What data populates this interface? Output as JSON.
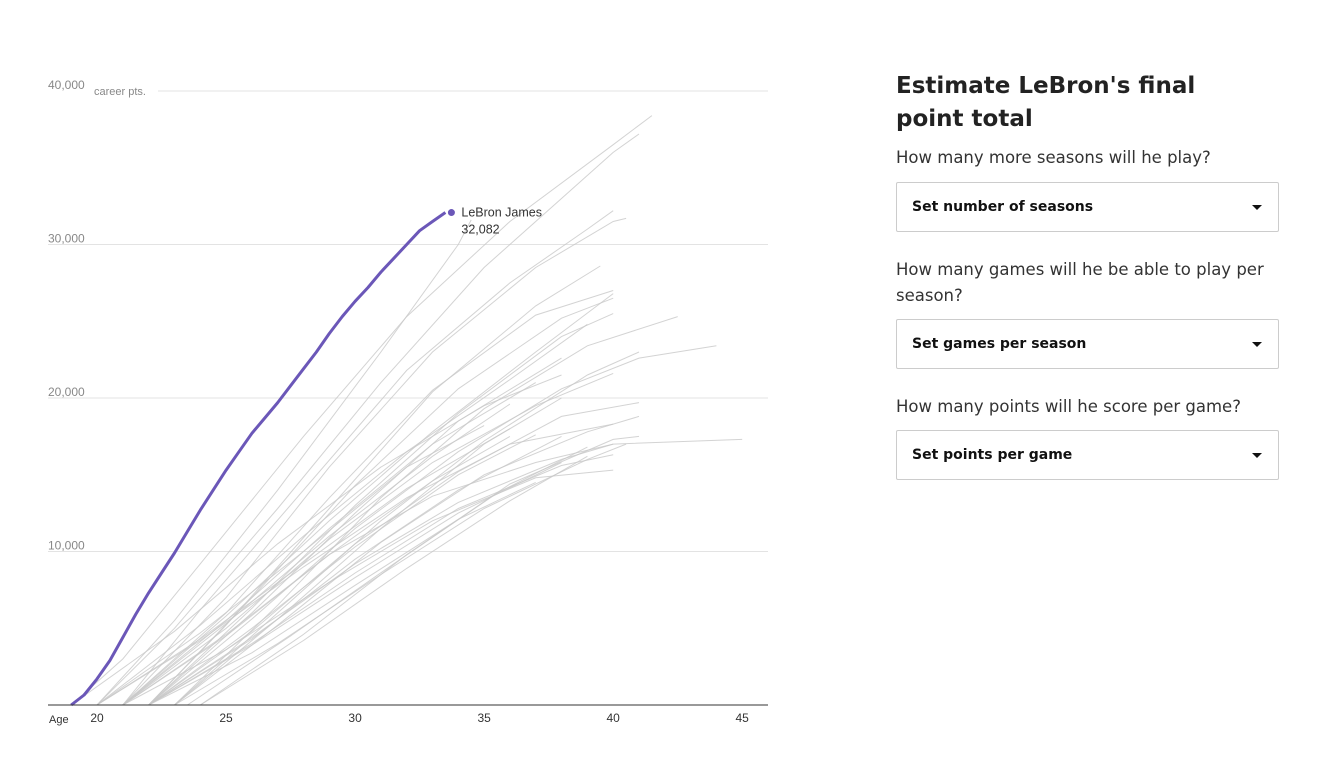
{
  "panel": {
    "title": "Estimate LeBron's final point total",
    "questions": [
      {
        "text": "How many more seasons will he play?",
        "select_label": "Set number of seasons"
      },
      {
        "text": "How many games will he be able to play per season?",
        "select_label": "Set games per season"
      },
      {
        "text": "How many points will he score per game?",
        "select_label": "Set points per game"
      }
    ]
  },
  "colors": {
    "highlight": "#6b57b8",
    "background_lines": "#c8c8c8",
    "grid": "#e3e3e3",
    "axis_text": "#888888"
  },
  "chart_data": {
    "type": "line",
    "x_axis_prefix": "Age",
    "y_unit_label": "career pts.",
    "xlim": [
      18.1,
      46
    ],
    "ylim": [
      0,
      40000
    ],
    "x_ticks": [
      20,
      25,
      30,
      35,
      40,
      45
    ],
    "y_ticks": [
      10000,
      20000,
      30000,
      40000
    ],
    "y_tick_labels": [
      "10,000",
      "20,000",
      "30,000",
      "40,000"
    ],
    "grid": true,
    "highlight": {
      "name": "LeBron James",
      "value_label": "32,082",
      "x": [
        19.0,
        19.5,
        20.0,
        20.5,
        21.0,
        21.5,
        22.0,
        22.5,
        23.0,
        23.5,
        24.0,
        24.5,
        25.0,
        25.5,
        26.0,
        26.5,
        27.0,
        27.5,
        28.0,
        28.5,
        29.0,
        29.5,
        30.0,
        30.5,
        31.0,
        31.5,
        32.0,
        32.5,
        33.0,
        33.5,
        34.0,
        34.5
      ],
      "y": [
        0,
        650,
        1700,
        2900,
        4400,
        5900,
        7300,
        8600,
        9900,
        11300,
        12700,
        14000,
        15300,
        16500,
        17700,
        18700,
        19700,
        20800,
        21900,
        23000,
        24200,
        25300,
        26300,
        27200,
        28200,
        29100,
        30000,
        30900,
        31500,
        32082,
        32082,
        32082
      ]
    },
    "background_series": [
      {
        "x": [
          19.0,
          21.0,
          24.0,
          28.0,
          32.0,
          36.0,
          40.0,
          41.5
        ],
        "y": [
          0,
          3000,
          9200,
          17500,
          25300,
          31500,
          36500,
          38400
        ]
      },
      {
        "x": [
          20.0,
          23.0,
          27.0,
          31.0,
          35.0,
          38.0,
          40.0,
          41.0
        ],
        "y": [
          0,
          5000,
          12800,
          21000,
          28500,
          33000,
          36000,
          37200
        ]
      },
      {
        "x": [
          20.0,
          23.0,
          27.0,
          31.0,
          34.0,
          34.5
        ],
        "y": [
          0,
          5500,
          14000,
          23000,
          30000,
          31600
        ]
      },
      {
        "x": [
          21.0,
          25.0,
          29.0,
          33.0,
          37.0,
          40.0,
          40.5
        ],
        "y": [
          0,
          7000,
          15500,
          23000,
          28500,
          31500,
          31700
        ]
      },
      {
        "x": [
          21.0,
          24.0,
          28.0,
          32.0,
          36.0,
          39.0,
          40.0
        ],
        "y": [
          0,
          6200,
          14000,
          21800,
          27500,
          31000,
          32200
        ]
      },
      {
        "x": [
          22.0,
          25.0,
          29.0,
          33.0,
          37.0,
          39.5
        ],
        "y": [
          0,
          5200,
          12800,
          20400,
          26000,
          28600
        ]
      },
      {
        "x": [
          21.0,
          25.0,
          29.0,
          33.0,
          37.0,
          40.0
        ],
        "y": [
          0,
          6000,
          13500,
          20500,
          25400,
          27000
        ]
      },
      {
        "x": [
          22.0,
          26.0,
          30.0,
          34.0,
          38.0,
          40.0
        ],
        "y": [
          0,
          7000,
          14300,
          20600,
          25200,
          26500
        ]
      },
      {
        "x": [
          23.0,
          27.0,
          31.0,
          35.0,
          39.0,
          42.5
        ],
        "y": [
          0,
          6500,
          13500,
          19300,
          23400,
          25300
        ]
      },
      {
        "x": [
          22.0,
          26.0,
          30.0,
          34.0,
          38.0,
          40.0
        ],
        "y": [
          0,
          6300,
          13000,
          19000,
          24000,
          25500
        ]
      },
      {
        "x": [
          21.0,
          25.0,
          29.0,
          33.0,
          37.0,
          40.0
        ],
        "y": [
          0,
          5800,
          12000,
          17800,
          23000,
          26800
        ]
      },
      {
        "x": [
          22.0,
          26.0,
          30.0,
          34.0,
          38.0,
          41.0,
          44.0
        ],
        "y": [
          0,
          5600,
          11500,
          16500,
          20600,
          22600,
          23400
        ]
      },
      {
        "x": [
          20.0,
          24.0,
          28.0,
          32.0,
          36.0,
          39.0
        ],
        "y": [
          0,
          5200,
          11000,
          16500,
          21200,
          24800
        ]
      },
      {
        "x": [
          23.0,
          27.0,
          31.0,
          35.0,
          39.0,
          41.0
        ],
        "y": [
          0,
          6000,
          12000,
          17200,
          21500,
          23000
        ]
      },
      {
        "x": [
          21.0,
          25.0,
          29.0,
          33.0,
          37.0,
          40.0
        ],
        "y": [
          0,
          5000,
          10800,
          15800,
          19500,
          21600
        ]
      },
      {
        "x": [
          22.0,
          26.0,
          30.0,
          34.0,
          38.0,
          41.0
        ],
        "y": [
          0,
          4800,
          10500,
          15200,
          18800,
          19700
        ]
      },
      {
        "x": [
          21.0,
          25.0,
          29.0,
          33.0,
          37.0,
          40.0,
          45.0
        ],
        "y": [
          0,
          4600,
          9800,
          13600,
          15800,
          17000,
          17300
        ]
      },
      {
        "x": [
          23.0,
          27.0,
          31.0,
          35.0,
          39.0,
          41.0
        ],
        "y": [
          0,
          5200,
          10600,
          15000,
          17800,
          18800
        ]
      },
      {
        "x": [
          20.0,
          24.0,
          28.0,
          32.0,
          36.0,
          40.0
        ],
        "y": [
          0,
          4200,
          9000,
          13500,
          17000,
          18300
        ]
      },
      {
        "x": [
          22.0,
          26.0,
          30.0,
          34.0,
          38.0,
          40.0
        ],
        "y": [
          0,
          4400,
          9200,
          13200,
          16000,
          17000
        ]
      },
      {
        "x": [
          24.0,
          28.0,
          32.0,
          36.0,
          40.0,
          41.0
        ],
        "y": [
          0,
          4600,
          9800,
          14400,
          17300,
          17500
        ]
      },
      {
        "x": [
          22.0,
          26.0,
          30.0,
          34.0,
          38.0,
          40.0
        ],
        "y": [
          0,
          4000,
          8600,
          12800,
          15600,
          16300
        ]
      },
      {
        "x": [
          21.0,
          25.0,
          29.0,
          33.0,
          37.0,
          40.0
        ],
        "y": [
          0,
          3600,
          8000,
          12000,
          14800,
          15300
        ]
      },
      {
        "x": [
          23.0,
          27.0,
          31.0,
          35.0,
          39.0,
          40.5
        ],
        "y": [
          0,
          4000,
          8500,
          12800,
          16000,
          17000
        ]
      },
      {
        "x": [
          22.0,
          26.0,
          30.0,
          34.0,
          38.0
        ],
        "y": [
          0,
          4300,
          9500,
          14000,
          17500
        ]
      },
      {
        "x": [
          23.5,
          27.5,
          31.5,
          35.5,
          39.0
        ],
        "y": [
          0,
          4500,
          9200,
          13800,
          16800
        ]
      },
      {
        "x": [
          19.0,
          23.0,
          27.0,
          31.0,
          35.0,
          38.0
        ],
        "y": [
          0,
          4800,
          10500,
          15500,
          19500,
          21500
        ]
      },
      {
        "x": [
          22.0,
          26.0,
          30.0,
          34.0,
          37.0
        ],
        "y": [
          0,
          5000,
          10300,
          15000,
          17600
        ]
      },
      {
        "x": [
          21.0,
          25.0,
          29.0,
          33.0,
          36.0
        ],
        "y": [
          0,
          4500,
          9800,
          14600,
          17500
        ]
      },
      {
        "x": [
          20.0,
          24.0,
          28.0,
          32.0,
          35.0
        ],
        "y": [
          0,
          4700,
          10000,
          15500,
          18200
        ]
      },
      {
        "x": [
          22.0,
          26.0,
          30.0,
          34.0,
          38.0
        ],
        "y": [
          0,
          3900,
          8300,
          12500,
          15800
        ]
      },
      {
        "x": [
          24.0,
          28.0,
          32.0,
          36.0,
          39.0
        ],
        "y": [
          0,
          4200,
          8900,
          13300,
          16200
        ]
      },
      {
        "x": [
          21.0,
          25.0,
          29.0,
          33.0,
          37.0
        ],
        "y": [
          0,
          5500,
          11500,
          17000,
          21000
        ]
      },
      {
        "x": [
          22.0,
          26.0,
          30.0,
          34.0,
          38.0
        ],
        "y": [
          0,
          6000,
          12500,
          18500,
          22600
        ]
      },
      {
        "x": [
          20.0,
          24.0,
          28.0,
          32.0,
          36.0
        ],
        "y": [
          0,
          4300,
          9200,
          14100,
          18000
        ]
      },
      {
        "x": [
          23.0,
          27.0,
          31.0,
          35.0,
          38.0
        ],
        "y": [
          0,
          5600,
          11500,
          17000,
          20000
        ]
      },
      {
        "x": [
          22.0,
          26.0,
          30.0,
          34.0,
          37.0
        ],
        "y": [
          0,
          3400,
          7800,
          12100,
          14500
        ]
      },
      {
        "x": [
          21.0,
          25.0,
          29.0,
          33.0,
          36.0
        ],
        "y": [
          0,
          5300,
          11000,
          16200,
          19600
        ]
      }
    ]
  }
}
